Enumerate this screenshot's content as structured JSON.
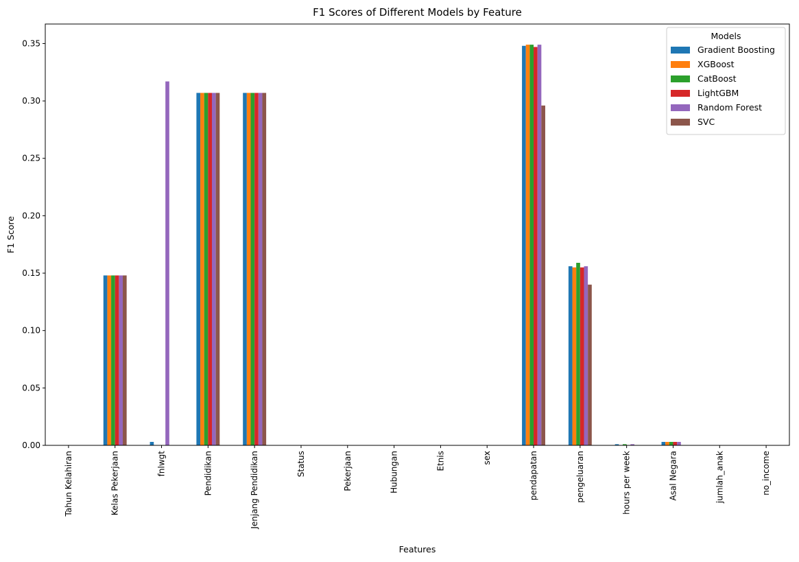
{
  "chart_data": {
    "type": "bar",
    "title": "F1 Scores of Different Models by Feature",
    "xlabel": "Features",
    "ylabel": "F1 Score",
    "ylim": [
      0,
      0.367
    ],
    "yticks": [
      0.0,
      0.05,
      0.1,
      0.15,
      0.2,
      0.25,
      0.3,
      0.35
    ],
    "ytick_labels": [
      "0.00",
      "0.05",
      "0.10",
      "0.15",
      "0.20",
      "0.25",
      "0.30",
      "0.35"
    ],
    "grid": false,
    "legend": {
      "title": "Models",
      "placement": "top-right"
    },
    "categories": [
      "Tahun Kelahiran",
      "Kelas Pekerjaan",
      "fnlwgt",
      "Pendidikan",
      "Jenjang Pendidikan",
      "Status",
      "Pekerjaan",
      "Hubungan",
      "Etnis",
      "sex",
      "pendapatan",
      "pengeluaran",
      "hours per week",
      "Asal Negara",
      "jumlah_anak",
      "no_income"
    ],
    "series": [
      {
        "name": "Gradient Boosting",
        "color": "#1f77b4",
        "values": [
          0,
          0.148,
          0.003,
          0.307,
          0.307,
          0,
          0,
          0,
          0,
          0,
          0.348,
          0.156,
          0.001,
          0.003,
          0,
          0
        ]
      },
      {
        "name": "XGBoost",
        "color": "#ff7f0e",
        "values": [
          0,
          0.148,
          0,
          0.307,
          0.307,
          0,
          0,
          0,
          0,
          0,
          0.349,
          0.155,
          0,
          0.003,
          0,
          0
        ]
      },
      {
        "name": "CatBoost",
        "color": "#2ca02c",
        "values": [
          0,
          0.148,
          0,
          0.307,
          0.307,
          0,
          0,
          0,
          0,
          0,
          0.349,
          0.159,
          0.001,
          0.003,
          0,
          0
        ]
      },
      {
        "name": "LightGBM",
        "color": "#d62728",
        "values": [
          0,
          0.148,
          0,
          0.307,
          0.307,
          0,
          0,
          0,
          0,
          0,
          0.347,
          0.155,
          0,
          0.003,
          0,
          0
        ]
      },
      {
        "name": "Random Forest",
        "color": "#9467bd",
        "values": [
          0,
          0.148,
          0.317,
          0.307,
          0.307,
          0,
          0,
          0,
          0,
          0,
          0.349,
          0.156,
          0.001,
          0.003,
          0,
          0
        ]
      },
      {
        "name": "SVC",
        "color": "#8c564b",
        "values": [
          0,
          0.148,
          0,
          0.307,
          0.307,
          0,
          0,
          0,
          0,
          0,
          0.296,
          0.14,
          0,
          0,
          0,
          0
        ]
      }
    ]
  }
}
